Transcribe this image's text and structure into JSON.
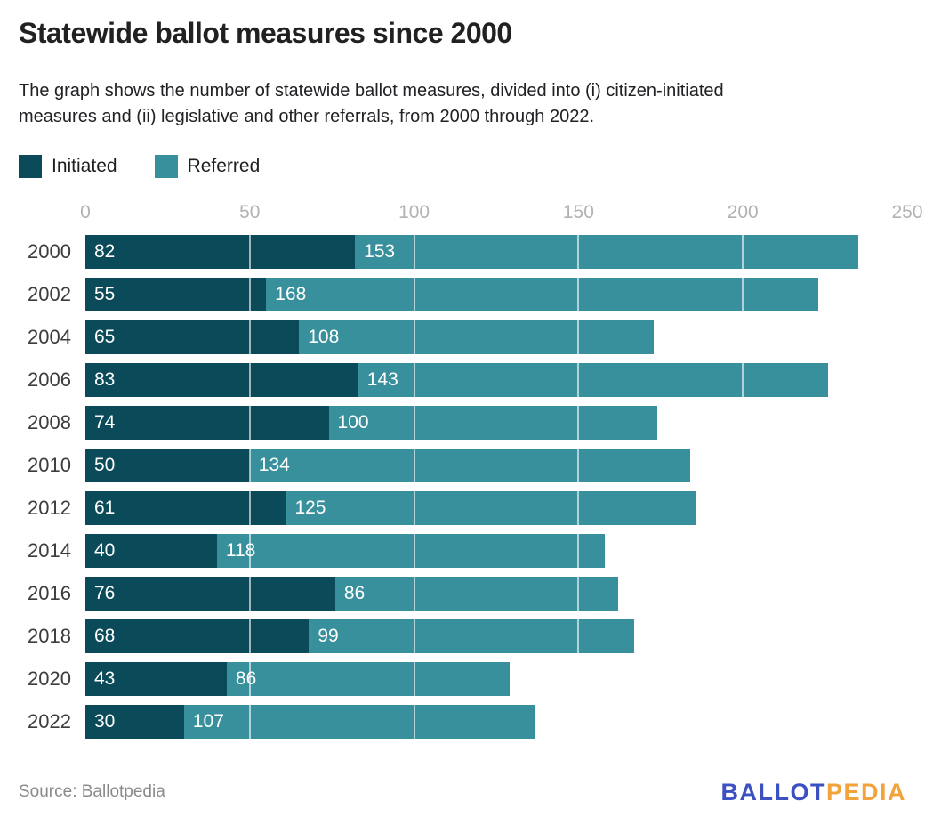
{
  "header": {
    "title": "Statewide ballot measures since 2000",
    "subtitle_lines": [
      "The graph shows the number of statewide ballot measures, divided into (i) citizen-initiated",
      "measures and (ii) legislative and other referrals, from 2000 through 2022."
    ]
  },
  "legend": [
    {
      "label": "Initiated",
      "color": "#0b4a58"
    },
    {
      "label": "Referred",
      "color": "#38909c"
    }
  ],
  "chart_data": {
    "type": "bar",
    "orientation": "horizontal",
    "stacked": true,
    "categories": [
      "2000",
      "2002",
      "2004",
      "2006",
      "2008",
      "2010",
      "2012",
      "2014",
      "2016",
      "2018",
      "2020",
      "2022"
    ],
    "series": [
      {
        "name": "Initiated",
        "color": "#0b4a58",
        "values": [
          82,
          55,
          65,
          83,
          74,
          50,
          61,
          40,
          76,
          68,
          43,
          30
        ]
      },
      {
        "name": "Referred",
        "color": "#38909c",
        "values": [
          153,
          168,
          108,
          143,
          100,
          134,
          125,
          118,
          86,
          99,
          86,
          107
        ]
      }
    ],
    "xlim": [
      0,
      250
    ],
    "x_ticks": [
      0,
      50,
      100,
      150,
      200,
      250
    ],
    "gridlines": [
      50,
      100,
      150,
      200
    ],
    "grid_color": "rgba(255,255,255,0.6)",
    "tick_color": "#b2b2b2",
    "value_label_color": "#ffffff",
    "legend_position": "top-left",
    "title": "Statewide ballot measures since 2000",
    "xlabel": "",
    "ylabel": ""
  },
  "footer": {
    "source": "Source: Ballotpedia",
    "logo": {
      "part1": "BALLOT",
      "part2": "PEDIA",
      "color1": "#3b51c1",
      "color2": "#f2a33c"
    }
  }
}
